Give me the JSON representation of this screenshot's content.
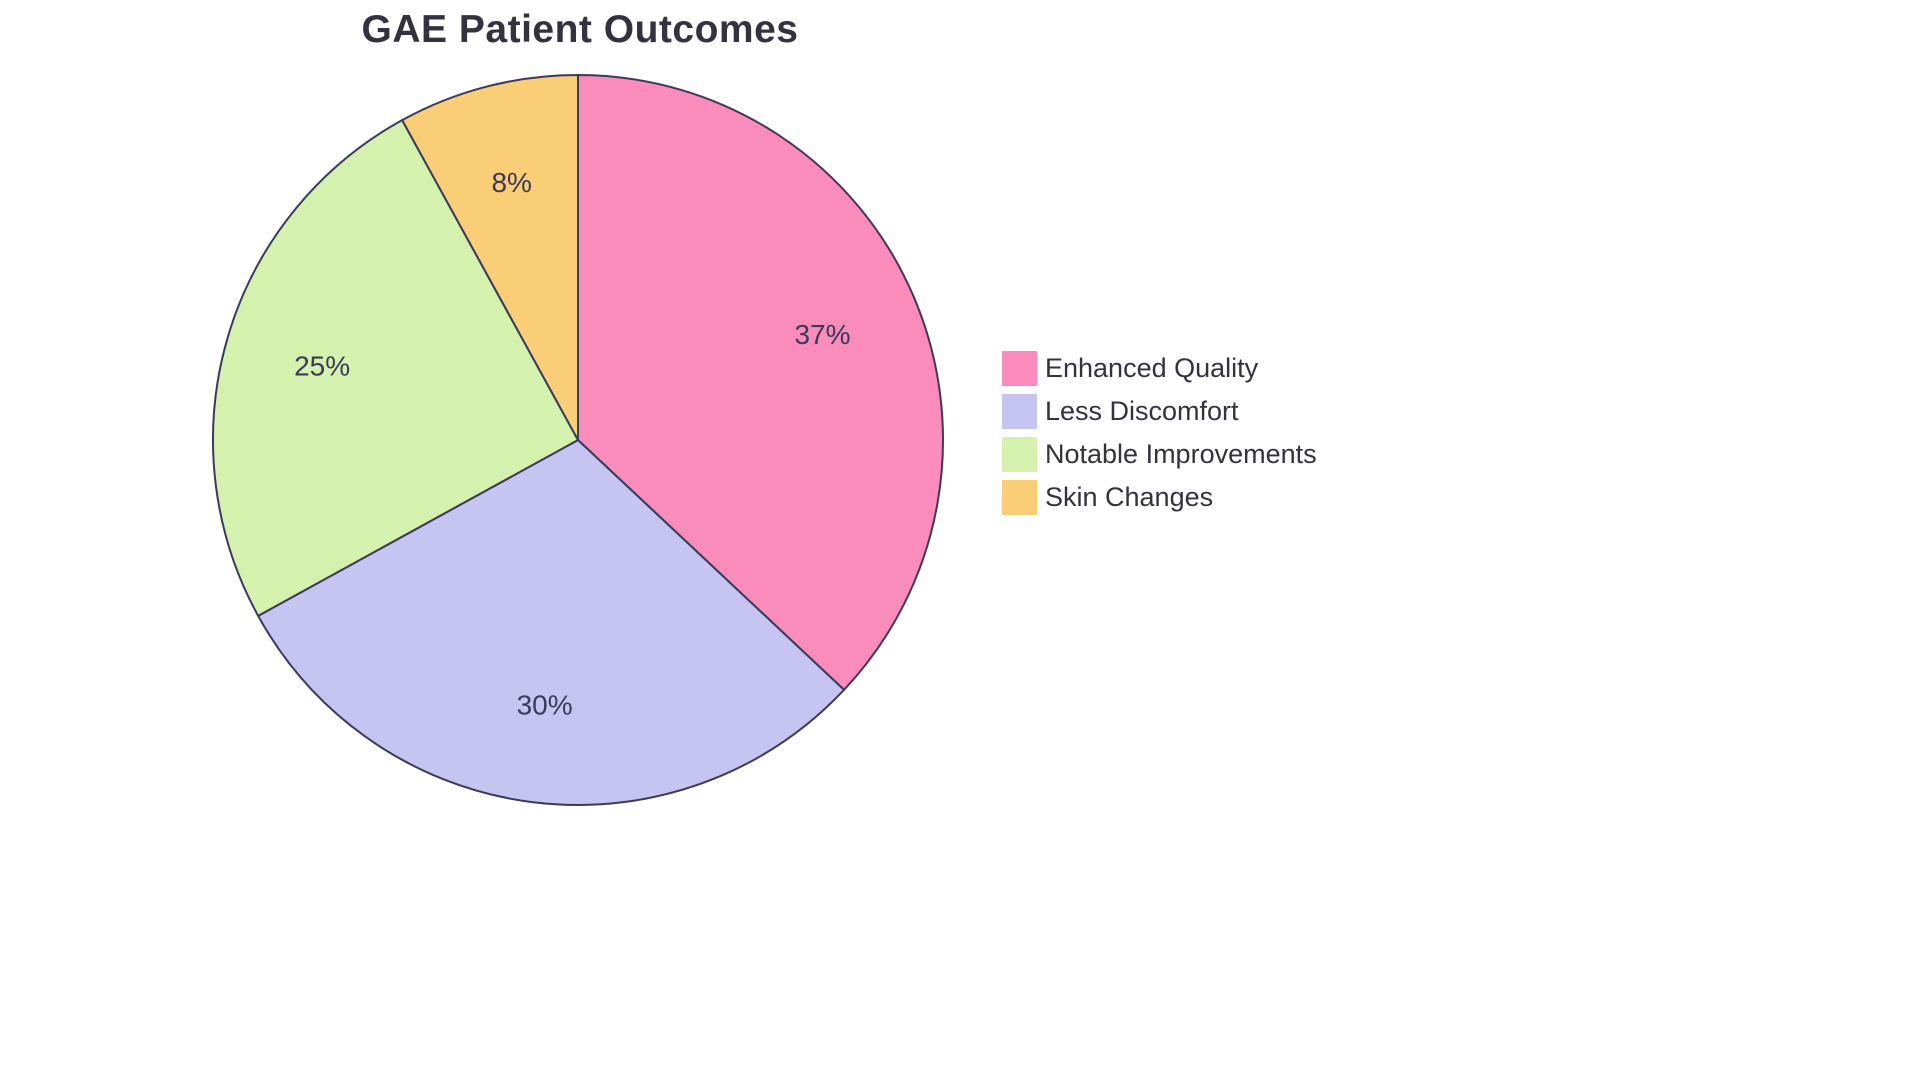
{
  "chart_data": {
    "type": "pie",
    "title": "GAE Patient Outcomes",
    "categories": [
      "Enhanced Quality",
      "Less Discomfort",
      "Notable Improvements",
      "Skin Changes"
    ],
    "values": [
      37,
      30,
      25,
      8
    ],
    "slice_labels": [
      "37%",
      "30%",
      "25%",
      "8%"
    ],
    "colors": [
      "#F98CBB",
      "#C6C4F0",
      "#D4F2AE",
      "#F9CE77"
    ],
    "stroke_color": "#3C3A5A",
    "label_color": "#3C3A5A",
    "title_color": "#33323E",
    "legend_text_color": "#33323E",
    "legend_position": "right",
    "start_angle_deg": 0,
    "direction": "clockwise",
    "total": 100
  }
}
